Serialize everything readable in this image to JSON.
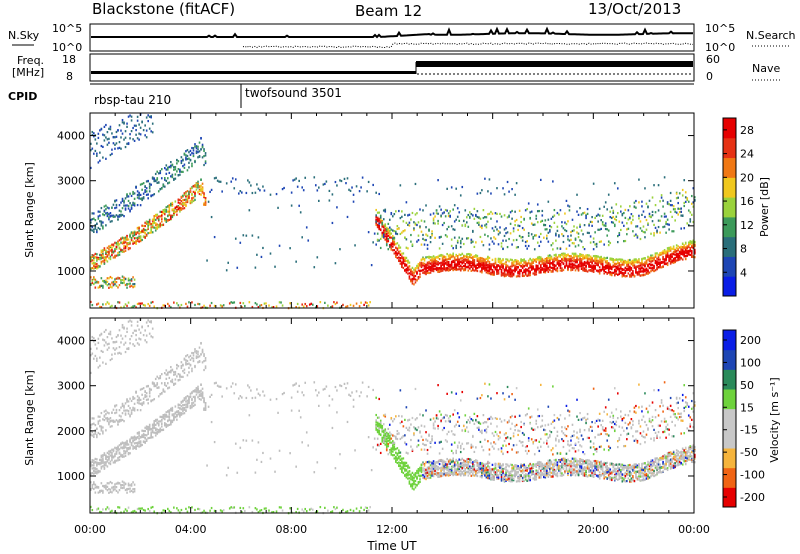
{
  "header": {
    "station": "Blackstone (fitACF)",
    "beam": "Beam 12",
    "date": "13/Oct/2013"
  },
  "aux_panel": {
    "nsky_label": "N.Sky",
    "nsky_ticks": [
      "10^5",
      "10^0"
    ],
    "nsearch_label": "N.Search",
    "freq_label_1": "Freq.",
    "freq_label_2": "[MHz]",
    "freq_ticks": [
      "18",
      "8"
    ],
    "nave_label": "Nave",
    "nave_ticks": [
      "60",
      "0"
    ],
    "cpid_label": "CPID",
    "cpid_segments": [
      {
        "name": "rbsp-tau 210",
        "start_hour": 0
      },
      {
        "name": "twofsound 3501",
        "start_hour": 6
      }
    ]
  },
  "colors": {
    "power_scale": [
      "#0a1ee6",
      "#1e46b4",
      "#2a6e7a",
      "#3c9a5a",
      "#9ad23c",
      "#f0c81e",
      "#f07814",
      "#e63214",
      "#e60000"
    ],
    "velocity_scale": [
      "#e60000",
      "#f06414",
      "#f5b43c",
      "#c8c8c8",
      "#c8c8c8",
      "#6ed23c",
      "#2a8a5a",
      "#1e46b4",
      "#0a1ee6"
    ],
    "ground_scatter": "#bebebe"
  },
  "chart_data": [
    {
      "type": "heatmap",
      "name_hint": "power",
      "xlabel": "",
      "ylabel": "Slant Range [km]",
      "xlim": [
        0,
        24
      ],
      "ylim": [
        180,
        4500
      ],
      "yticks": [
        "1000",
        "2000",
        "3000",
        "4000"
      ],
      "colorbar_label": "Power [dB]",
      "colorbar_ticks": [
        "4",
        "8",
        "12",
        "16",
        "20",
        "24",
        "28"
      ],
      "colorbar_range": [
        0,
        30
      ]
    },
    {
      "type": "heatmap",
      "name_hint": "velocity",
      "xlabel": "Time UT",
      "ylabel": "Slant Range [km]",
      "xlim": [
        0,
        24
      ],
      "ylim": [
        180,
        4500
      ],
      "xticks": [
        "00:00",
        "04:00",
        "08:00",
        "12:00",
        "16:00",
        "20:00",
        "00:00"
      ],
      "yticks": [
        "1000",
        "2000",
        "3000",
        "4000"
      ],
      "colorbar_label": "Velocity [m s⁻¹]",
      "colorbar_ticks": [
        "200",
        "100",
        "50",
        "15",
        "-15",
        "-50",
        "-100",
        "-200"
      ],
      "colorbar_range": [
        -250,
        250
      ]
    }
  ]
}
